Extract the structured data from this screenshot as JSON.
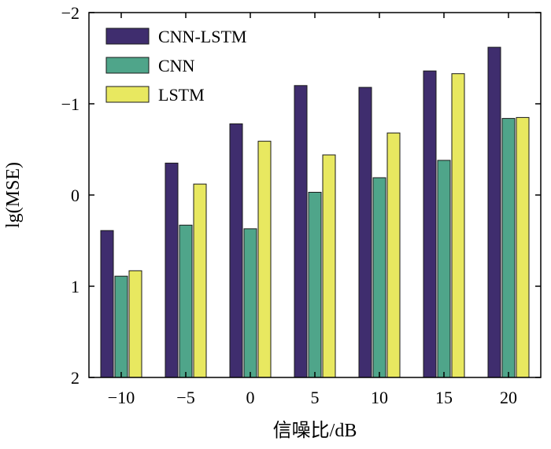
{
  "chart_data": {
    "type": "bar",
    "title": "",
    "xlabel": "信噪比/dB",
    "ylabel": "lg(MSE)",
    "categories": [
      "−10",
      "−5",
      "0",
      "5",
      "10",
      "15",
      "20"
    ],
    "ylim": [
      2,
      -2
    ],
    "y_axis_inverted": true,
    "yticks": [
      {
        "value": -2,
        "label": "−2"
      },
      {
        "value": -1,
        "label": "−1"
      },
      {
        "value": 0,
        "label": "0"
      },
      {
        "value": 1,
        "label": "1"
      },
      {
        "value": 2,
        "label": "2"
      }
    ],
    "legend_position": "top-left",
    "grid": false,
    "series": [
      {
        "name": "CNN-LSTM",
        "color": "#3f2d6e",
        "values": [
          0.39,
          -0.35,
          -0.78,
          -1.2,
          -1.18,
          -1.36,
          -1.62
        ]
      },
      {
        "name": "CNN",
        "color": "#4fa58a",
        "values": [
          0.89,
          0.33,
          0.37,
          -0.03,
          -0.19,
          -0.38,
          -0.84
        ]
      },
      {
        "name": "LSTM",
        "color": "#e8e860",
        "values": [
          0.83,
          -0.12,
          -0.59,
          -0.44,
          -0.68,
          -1.33,
          -0.85
        ]
      }
    ]
  }
}
